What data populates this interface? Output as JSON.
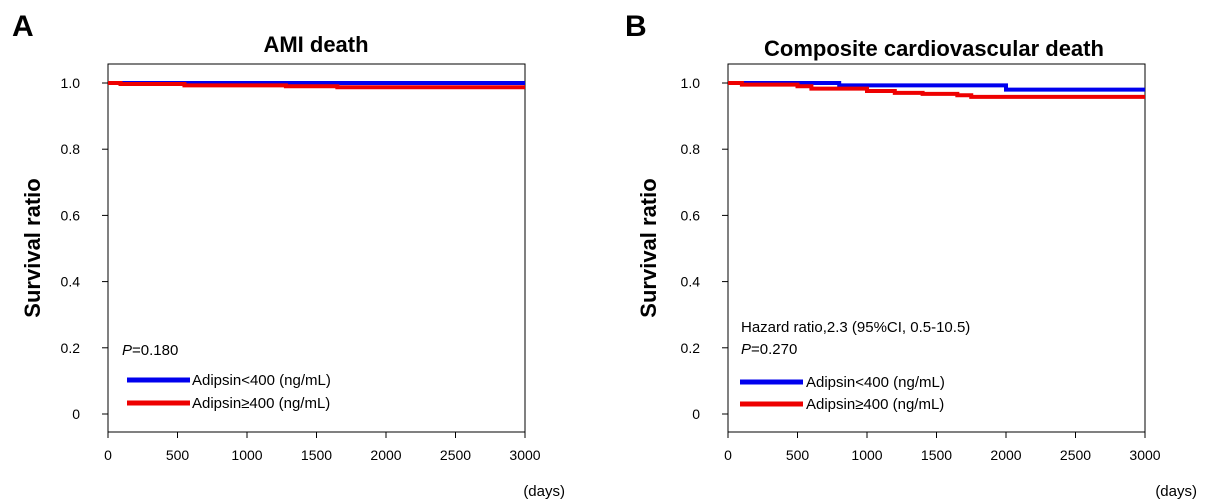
{
  "chart_data": [
    {
      "panel": "A",
      "type": "line",
      "title": "AMI death",
      "ylabel": "Survival ratio",
      "x_unit": "(days)",
      "xlim": [
        0,
        3000
      ],
      "ylim": [
        0,
        1.0
      ],
      "x_ticks": [
        0,
        500,
        1000,
        1500,
        2000,
        2500,
        3000
      ],
      "y_ticks": [
        {
          "value": 1.0,
          "label": "1.0"
        },
        {
          "value": 0.8,
          "label": "0.8"
        },
        {
          "value": 0.6,
          "label": "0.6"
        },
        {
          "value": 0.4,
          "label": "0.4"
        },
        {
          "value": 0.2,
          "label": "0.2"
        },
        {
          "value": 0.0,
          "label": "0"
        }
      ],
      "annotations": [
        {
          "italic": "P",
          "text": "=0.180"
        }
      ],
      "series": [
        {
          "name": "Adipsin<400 (ng/mL)",
          "color": "#0000ee",
          "x": [
            0,
            3000
          ],
          "y": [
            1.0,
            1.0
          ]
        },
        {
          "name": "Adipsin≥400 (ng/mL)",
          "color": "#ee0000",
          "x": [
            0,
            90,
            550,
            1280,
            1650,
            3000
          ],
          "y": [
            1.0,
            0.997,
            0.993,
            0.99,
            0.987,
            0.987
          ]
        }
      ],
      "legend_position": "bottom-left"
    },
    {
      "panel": "B",
      "type": "line",
      "title": "Composite cardiovascular death",
      "ylabel": "Survival ratio",
      "x_unit": "(days)",
      "xlim": [
        0,
        3000
      ],
      "ylim": [
        0,
        1.0
      ],
      "x_ticks": [
        0,
        500,
        1000,
        1500,
        2000,
        2500,
        3000
      ],
      "y_ticks": [
        {
          "value": 1.0,
          "label": "1.0"
        },
        {
          "value": 0.8,
          "label": "0.8"
        },
        {
          "value": 0.6,
          "label": "0.6"
        },
        {
          "value": 0.4,
          "label": "0.4"
        },
        {
          "value": 0.2,
          "label": "0.2"
        },
        {
          "value": 0.0,
          "label": "0"
        }
      ],
      "annotations": [
        {
          "text": "Hazard ratio,2.3 (95%CI, 0.5-10.5)"
        },
        {
          "italic": "P",
          "text": "=0.270"
        }
      ],
      "series": [
        {
          "name": "Adipsin<400 (ng/mL)",
          "color": "#0000ee",
          "x": [
            0,
            800,
            2000,
            3000
          ],
          "y": [
            1.0,
            0.993,
            0.98,
            0.98
          ]
        },
        {
          "name": "Adipsin≥400 (ng/mL)",
          "color": "#ee0000",
          "x": [
            0,
            100,
            500,
            600,
            1000,
            1200,
            1400,
            1650,
            1750,
            3000
          ],
          "y": [
            1.0,
            0.995,
            0.99,
            0.983,
            0.976,
            0.97,
            0.967,
            0.963,
            0.958,
            0.958
          ]
        }
      ],
      "legend_position": "bottom-left"
    }
  ]
}
